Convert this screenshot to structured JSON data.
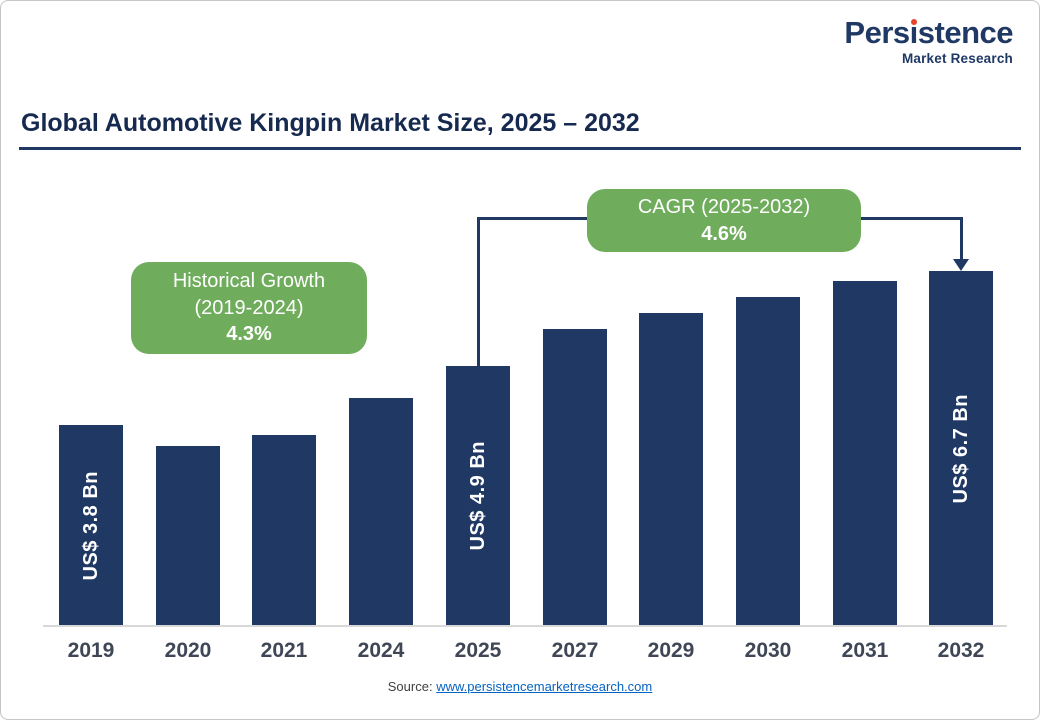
{
  "logo": {
    "brand": "Persistence",
    "brand_pre": "Pers",
    "brand_i": "ı",
    "brand_post": "stence",
    "subtitle": "Market Research"
  },
  "title": "Global Automotive Kingpin Market Size, 2025 – 2032",
  "callouts": {
    "historical": {
      "line1": "Historical Growth",
      "line2": "(2019-2024)",
      "value": "4.3%"
    },
    "cagr": {
      "line1": "CAGR (2025-2032)",
      "value": "4.6%"
    }
  },
  "source": {
    "label": "Source:",
    "link_text": "www.persistencemarketresearch.com"
  },
  "colors": {
    "bar": "#1F3864",
    "navy": "#1F3864",
    "green": "#6FAC5C",
    "link_blue": "#0563C1",
    "red_dot": "#E8432D"
  },
  "chart_data": {
    "type": "bar",
    "title": "Global Automotive Kingpin Market Size, 2025 – 2032",
    "categories": [
      "2019",
      "2020",
      "2021",
      "2024",
      "2025",
      "2027",
      "2029",
      "2030",
      "2031",
      "2032"
    ],
    "values": [
      3.8,
      3.4,
      3.6,
      4.3,
      4.9,
      5.6,
      5.9,
      6.2,
      6.5,
      6.7
    ],
    "labeled_values": {
      "2019": "US$ 3.8 Bn",
      "2025": "US$ 4.9 Bn",
      "2032": "US$ 6.7 Bn"
    },
    "xlabel": "",
    "ylabel": "",
    "ylim": [
      0,
      7.5
    ],
    "grid": false,
    "legend": false,
    "bar_color": "#1F3864",
    "annotations": [
      "Historical Growth (2019-2024) 4.3%",
      "CAGR (2025-2032) 4.6%"
    ]
  }
}
